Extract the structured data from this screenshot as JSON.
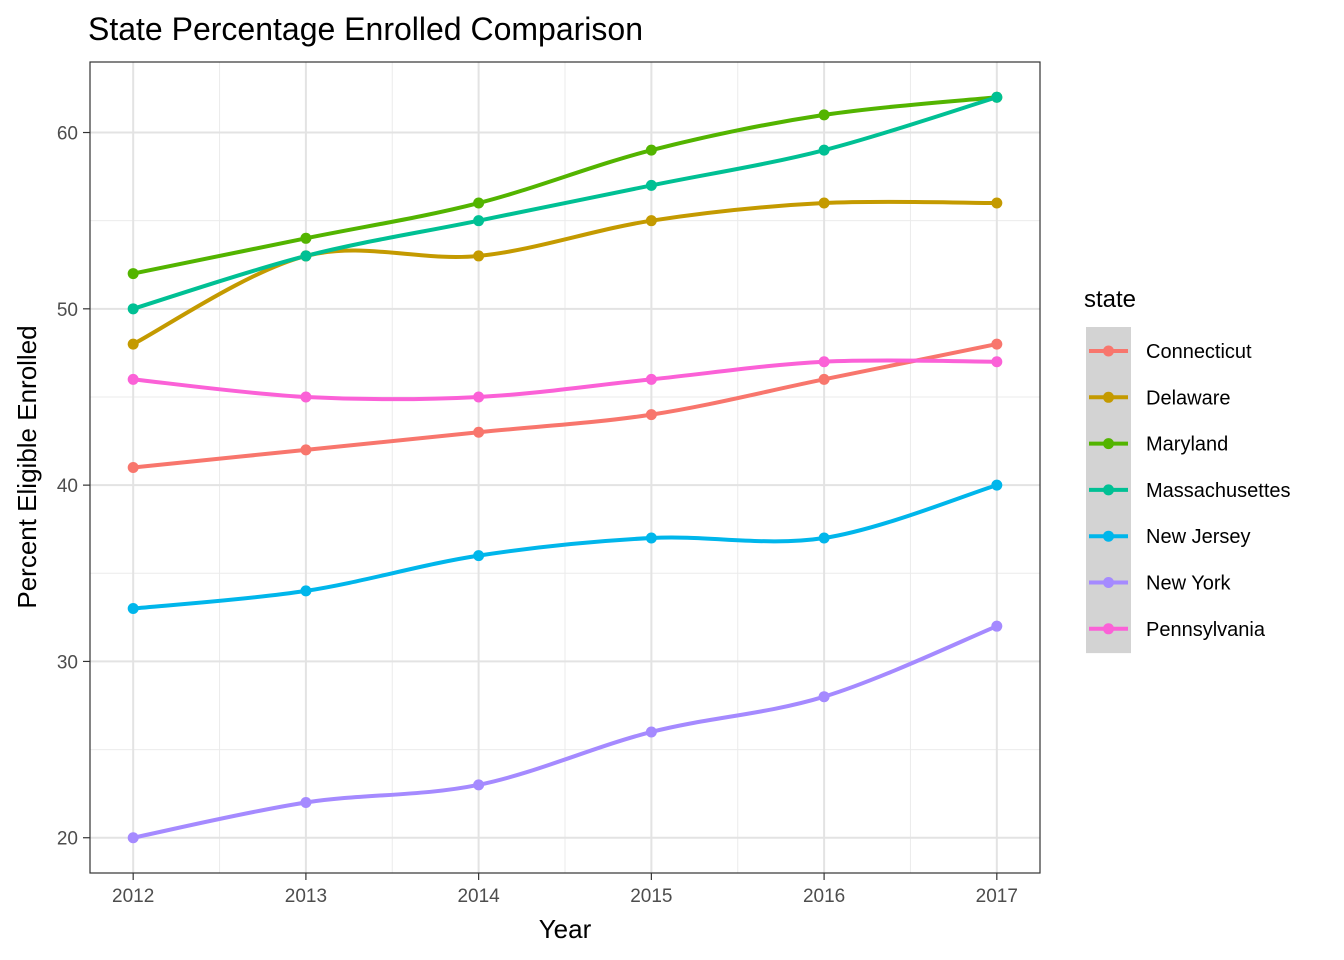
{
  "chart_data": {
    "type": "line",
    "title": "State Percentage Enrolled Comparison",
    "xlabel": "Year",
    "ylabel": "Percent Eligible Enrolled",
    "x": [
      2012,
      2013,
      2014,
      2015,
      2016,
      2017
    ],
    "x_tick_labels": [
      "2012",
      "2013",
      "2014",
      "2015",
      "2016",
      "2017"
    ],
    "y_ticks": [
      20,
      30,
      40,
      50,
      60
    ],
    "y_tick_labels": [
      "20",
      "30",
      "40",
      "50",
      "60"
    ],
    "xlim": [
      2011.75,
      2017.25
    ],
    "ylim": [
      18,
      64
    ],
    "grid": true,
    "smooth": true,
    "legend": {
      "title": "state",
      "position": "right"
    },
    "series": [
      {
        "name": "Connecticut",
        "color": "#F8766D",
        "values": [
          41,
          42,
          43,
          44,
          46,
          48
        ]
      },
      {
        "name": "Delaware",
        "color": "#C49A00",
        "values": [
          48,
          53,
          53,
          55,
          56,
          56
        ]
      },
      {
        "name": "Maryland",
        "color": "#53B400",
        "values": [
          52,
          54,
          56,
          59,
          61,
          62
        ]
      },
      {
        "name": "Massachusettes",
        "color": "#00C094",
        "values": [
          50,
          53,
          55,
          57,
          59,
          62
        ]
      },
      {
        "name": "New Jersey",
        "color": "#00B6EB",
        "values": [
          33,
          34,
          36,
          37,
          37,
          40
        ]
      },
      {
        "name": "New York",
        "color": "#A58AFF",
        "values": [
          20,
          22,
          23,
          26,
          28,
          32
        ]
      },
      {
        "name": "Pennsylvania",
        "color": "#FB61D7",
        "values": [
          46,
          45,
          45,
          46,
          47,
          47
        ]
      }
    ]
  }
}
